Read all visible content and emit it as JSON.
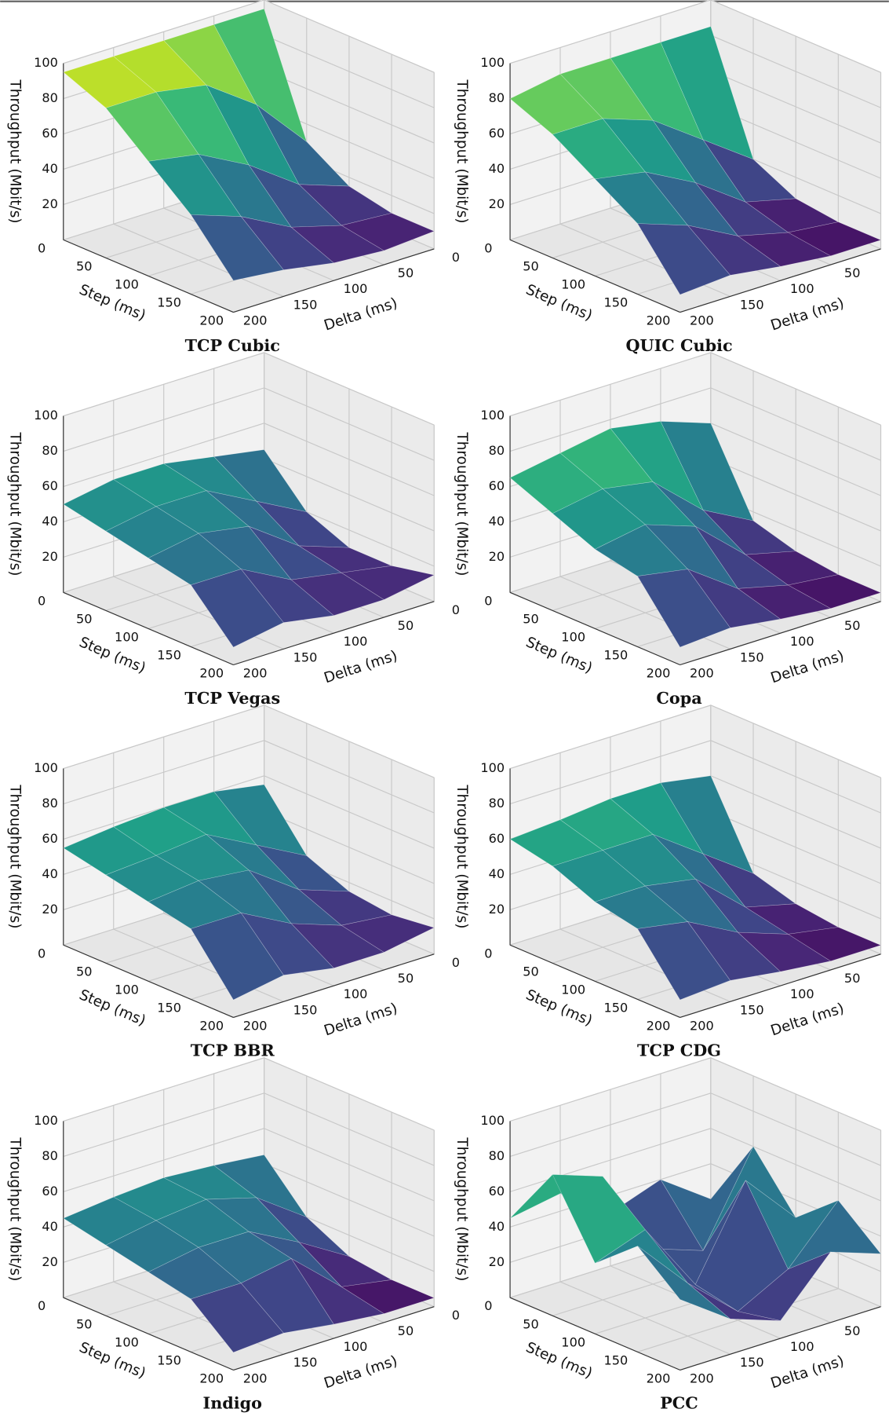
{
  "chart_data": [
    {
      "type": "surface3d",
      "title": "TCP Cubic",
      "xlabel": "Step (ms)",
      "ylabel": "Delta (ms)",
      "zlabel": "Throughput (Mbit/s)",
      "colormap": "viridis",
      "x": [
        0,
        50,
        100,
        150,
        200
      ],
      "y": [
        0,
        50,
        100,
        150,
        200
      ],
      "z": [
        [
          95,
          95,
          95,
          95,
          95
        ],
        [
          30,
          60,
          80,
          85,
          85
        ],
        [
          15,
          25,
          45,
          60,
          65
        ],
        [
          10,
          12,
          20,
          35,
          45
        ],
        [
          10,
          8,
          10,
          15,
          18
        ]
      ],
      "xlim": [
        0,
        200
      ],
      "ylim": [
        0,
        200
      ],
      "zlim": [
        0,
        100
      ],
      "xticks": [
        0,
        50,
        100,
        150,
        200
      ],
      "yticks": [
        0,
        50,
        100,
        150,
        200
      ],
      "zticks": [
        20,
        40,
        60,
        80,
        100
      ]
    },
    {
      "type": "surface3d",
      "title": "QUIC Cubic",
      "xlabel": "Step (ms)",
      "ylabel": "Delta (ms)",
      "zlabel": "Throughput (Mbit/s)",
      "colormap": "viridis",
      "x": [
        0,
        50,
        100,
        150,
        200
      ],
      "y": [
        0,
        50,
        100,
        150,
        200
      ],
      "z": [
        [
          85,
          85,
          85,
          85,
          80
        ],
        [
          20,
          40,
          60,
          70,
          70
        ],
        [
          8,
          15,
          35,
          50,
          55
        ],
        [
          5,
          8,
          15,
          30,
          40
        ],
        [
          5,
          5,
          8,
          12,
          10
        ]
      ],
      "xlim": [
        0,
        200
      ],
      "ylim": [
        0,
        200
      ],
      "zlim": [
        0,
        100
      ],
      "xticks": [
        0,
        50,
        100,
        150,
        200
      ],
      "yticks": [
        0,
        50,
        100,
        150,
        200
      ],
      "zticks": [
        20,
        40,
        60,
        80,
        100
      ]
    },
    {
      "type": "surface3d",
      "title": "TCP Vegas",
      "xlabel": "Step (ms)",
      "ylabel": "Delta (ms)",
      "zlabel": "Throughput (Mbit/s)",
      "colormap": "viridis",
      "x": [
        0,
        50,
        100,
        150,
        200
      ],
      "y": [
        0,
        50,
        100,
        150,
        200
      ],
      "z": [
        [
          45,
          50,
          55,
          55,
          50
        ],
        [
          20,
          35,
          50,
          50,
          45
        ],
        [
          10,
          20,
          40,
          45,
          40
        ],
        [
          10,
          15,
          20,
          35,
          35
        ],
        [
          15,
          10,
          10,
          15,
          10
        ]
      ],
      "xlim": [
        0,
        200
      ],
      "ylim": [
        0,
        200
      ],
      "zlim": [
        0,
        100
      ],
      "xticks": [
        0,
        50,
        100,
        150,
        200
      ],
      "yticks": [
        0,
        50,
        100,
        150,
        200
      ],
      "zticks": [
        20,
        40,
        60,
        80,
        100
      ]
    },
    {
      "type": "surface3d",
      "title": "Copa",
      "xlabel": "Step (ms)",
      "ylabel": "Delta (ms)",
      "zlabel": "Throughput (Mbit/s)",
      "colormap": "viridis",
      "x": [
        0,
        50,
        100,
        150,
        200
      ],
      "y": [
        0,
        50,
        100,
        150,
        200
      ],
      "z": [
        [
          60,
          70,
          75,
          70,
          65
        ],
        [
          15,
          30,
          55,
          60,
          55
        ],
        [
          8,
          15,
          40,
          50,
          45
        ],
        [
          5,
          8,
          15,
          35,
          40
        ],
        [
          5,
          5,
          8,
          12,
          10
        ]
      ],
      "xlim": [
        0,
        200
      ],
      "ylim": [
        0,
        200
      ],
      "zlim": [
        0,
        100
      ],
      "xticks": [
        0,
        50,
        100,
        150,
        200
      ],
      "yticks": [
        0,
        50,
        100,
        150,
        200
      ],
      "zticks": [
        20,
        40,
        60,
        80,
        100
      ]
    },
    {
      "type": "surface3d",
      "title": "TCP BBR",
      "xlabel": "Step (ms)",
      "ylabel": "Delta (ms)",
      "zlabel": "Throughput (Mbit/s)",
      "colormap": "viridis",
      "x": [
        0,
        50,
        100,
        150,
        200
      ],
      "y": [
        0,
        50,
        100,
        150,
        200
      ],
      "z": [
        [
          55,
          60,
          60,
          58,
          55
        ],
        [
          25,
          40,
          55,
          52,
          50
        ],
        [
          15,
          25,
          45,
          48,
          45
        ],
        [
          12,
          15,
          25,
          40,
          40
        ],
        [
          15,
          10,
          10,
          15,
          10
        ]
      ],
      "xlim": [
        0,
        200
      ],
      "ylim": [
        0,
        200
      ],
      "zlim": [
        0,
        100
      ],
      "xticks": [
        0,
        50,
        100,
        150,
        200
      ],
      "yticks": [
        0,
        50,
        100,
        150,
        200
      ],
      "zticks": [
        20,
        40,
        60,
        80,
        100
      ]
    },
    {
      "type": "surface3d",
      "title": "TCP CDG",
      "xlabel": "Step (ms)",
      "ylabel": "Delta (ms)",
      "zlabel": "Throughput (Mbit/s)",
      "colormap": "viridis",
      "x": [
        0,
        50,
        100,
        150,
        200
      ],
      "y": [
        0,
        50,
        100,
        150,
        200
      ],
      "z": [
        [
          60,
          65,
          65,
          62,
          60
        ],
        [
          15,
          35,
          55,
          55,
          55
        ],
        [
          8,
          15,
          40,
          45,
          45
        ],
        [
          5,
          10,
          20,
          35,
          40
        ],
        [
          5,
          5,
          8,
          12,
          10
        ]
      ],
      "xlim": [
        0,
        200
      ],
      "ylim": [
        0,
        200
      ],
      "zlim": [
        0,
        100
      ],
      "xticks": [
        0,
        50,
        100,
        150,
        200
      ],
      "yticks": [
        0,
        50,
        100,
        150,
        200
      ],
      "zticks": [
        20,
        40,
        60,
        80,
        100
      ]
    },
    {
      "type": "surface3d",
      "title": "Indigo",
      "xlabel": "Step (ms)",
      "ylabel": "Delta (ms)",
      "zlabel": "Throughput (Mbit/s)",
      "colormap": "viridis",
      "x": [
        0,
        50,
        100,
        150,
        200
      ],
      "y": [
        0,
        50,
        100,
        150,
        200
      ],
      "z": [
        [
          45,
          48,
          50,
          48,
          45
        ],
        [
          20,
          40,
          48,
          45,
          40
        ],
        [
          8,
          25,
          40,
          40,
          35
        ],
        [
          5,
          10,
          35,
          30,
          30
        ],
        [
          5,
          5,
          8,
          12,
          10
        ]
      ],
      "xlim": [
        0,
        200
      ],
      "ylim": [
        0,
        200
      ],
      "zlim": [
        0,
        100
      ],
      "xticks": [
        0,
        50,
        100,
        150,
        200
      ],
      "yticks": [
        0,
        50,
        100,
        150,
        200
      ],
      "zticks": [
        20,
        40,
        60,
        80,
        100
      ]
    },
    {
      "type": "surface3d",
      "title": "PCC",
      "xlabel": "Step (ms)",
      "ylabel": "Delta (ms)",
      "zlabel": "Throughput (Mbit/s)",
      "colormap": "viridis",
      "x": [
        0,
        50,
        100,
        150,
        200
      ],
      "y": [
        0,
        50,
        100,
        150,
        200
      ],
      "z": [
        [
          20,
          40,
          30,
          50,
          45
        ],
        [
          60,
          10,
          20,
          70,
          80
        ],
        [
          30,
          60,
          10,
          50,
          40
        ],
        [
          50,
          20,
          5,
          30,
          60
        ],
        [
          30,
          40,
          10,
          20,
          40
        ]
      ],
      "xlim": [
        0,
        200
      ],
      "ylim": [
        0,
        200
      ],
      "zlim": [
        0,
        100
      ],
      "xticks": [
        0,
        50,
        100,
        150,
        200
      ],
      "yticks": [
        0,
        50,
        100,
        150,
        200
      ],
      "zticks": [
        20,
        40,
        60,
        80,
        100
      ]
    }
  ]
}
